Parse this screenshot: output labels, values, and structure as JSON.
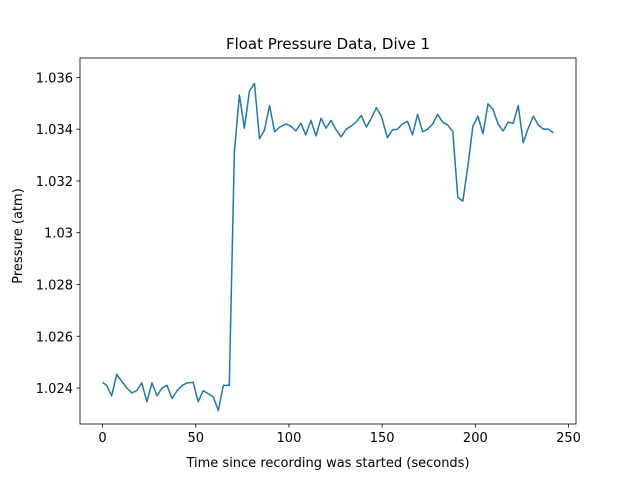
{
  "chart_data": {
    "type": "line",
    "title": "Float Pressure Data, Dive 1",
    "xlabel": "Time since recording was started (seconds)",
    "ylabel": "Pressure (atm)",
    "x": [
      0,
      2.2,
      4.9,
      7.6,
      10.3,
      13,
      15.7,
      18.4,
      21,
      23.8,
      26.5,
      29.2,
      31.9,
      34.6,
      37.3,
      40,
      42.7,
      45.4,
      48.6,
      51.3,
      54,
      56.7,
      59.4,
      62.1,
      64.8,
      68,
      70.7,
      73.4,
      76.1,
      78.8,
      81.5,
      84.2,
      86.9,
      89.6,
      92.3,
      95,
      98.3,
      101,
      103.7,
      106.4,
      109,
      111.8,
      114.5,
      117.2,
      119.9,
      122.6,
      125.3,
      128,
      130.7,
      133.4,
      136,
      138.8,
      141.5,
      144.2,
      146.9,
      149.6,
      152.8,
      155.5,
      158.2,
      160.9,
      163.6,
      166.3,
      169,
      171.7,
      174.4,
      177.1,
      179.8,
      182.5,
      185.2,
      187.9,
      190.6,
      193.3,
      196,
      198.7,
      201.4,
      204.1,
      206.8,
      209.5,
      212.2,
      214.9,
      217.6,
      220.3,
      223,
      225.7,
      228.4,
      231.1,
      233.8,
      236.5,
      239.2,
      241.9
    ],
    "series": [
      {
        "name": "Pressure",
        "color": "#1f77b4",
        "values": [
          1.02422,
          1.0241,
          1.0237,
          1.02453,
          1.02426,
          1.024,
          1.02381,
          1.0239,
          1.0242,
          1.02347,
          1.0242,
          1.0237,
          1.024,
          1.0241,
          1.02359,
          1.0239,
          1.0241,
          1.0242,
          1.02422,
          1.02347,
          1.0239,
          1.02378,
          1.02366,
          1.02313,
          1.0241,
          1.0241,
          1.0331,
          1.03532,
          1.03404,
          1.03547,
          1.03577,
          1.03363,
          1.03397,
          1.03491,
          1.0339,
          1.03408,
          1.0342,
          1.03412,
          1.03393,
          1.03423,
          1.03378,
          1.03434,
          1.03374,
          1.03442,
          1.03404,
          1.03434,
          1.03397,
          1.0337,
          1.034,
          1.03412,
          1.03427,
          1.03453,
          1.03408,
          1.03442,
          1.03483,
          1.0345,
          1.03367,
          1.03397,
          1.034,
          1.0342,
          1.0343,
          1.03378,
          1.03457,
          1.0339,
          1.034,
          1.0342,
          1.03457,
          1.03427,
          1.03416,
          1.0339,
          1.03137,
          1.03122,
          1.03258,
          1.03412,
          1.0345,
          1.03382,
          1.03498,
          1.03476,
          1.0342,
          1.03393,
          1.03427,
          1.03423,
          1.03491,
          1.03348,
          1.03404,
          1.0345,
          1.03416,
          1.034,
          1.034,
          1.03386
        ]
      }
    ],
    "xlim": [
      -12.1,
      254
    ],
    "xticks": [
      0,
      50,
      100,
      150,
      200,
      250
    ],
    "ylim": [
      1.02261,
      1.03675
    ],
    "yticks": [
      1.024,
      1.026,
      1.028,
      1.03,
      1.032,
      1.034,
      1.036
    ],
    "grid": false
  }
}
